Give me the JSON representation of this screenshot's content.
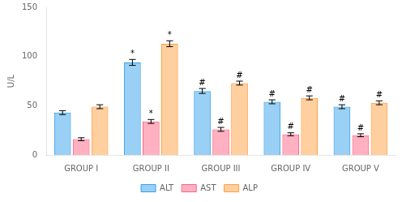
{
  "chart_data": {
    "type": "bar",
    "categories": [
      "GROUP I",
      "GROUP II",
      "GROUP III",
      "GROUP IV",
      "GROUP V"
    ],
    "series": [
      {
        "name": "ALT",
        "values": [
          43,
          94,
          65,
          54,
          49
        ],
        "errors": [
          2,
          3,
          2.5,
          2,
          2
        ],
        "annotations": [
          null,
          "*",
          "#",
          "#",
          "#"
        ]
      },
      {
        "name": "AST",
        "values": [
          16,
          34,
          26,
          21,
          20
        ],
        "errors": [
          1.5,
          2,
          2,
          1.5,
          1.5
        ],
        "annotations": [
          null,
          "*",
          "#",
          "#",
          "#"
        ]
      },
      {
        "name": "ALP",
        "values": [
          49,
          113,
          73,
          58,
          53
        ],
        "errors": [
          2,
          3,
          2,
          2,
          2
        ],
        "annotations": [
          null,
          "*",
          "#",
          "#",
          "#"
        ]
      }
    ],
    "ylabel": "U/L",
    "ylim": [
      0,
      150
    ],
    "yticks": [
      0,
      50,
      100,
      150
    ],
    "grid": false,
    "legend": "bottom"
  }
}
